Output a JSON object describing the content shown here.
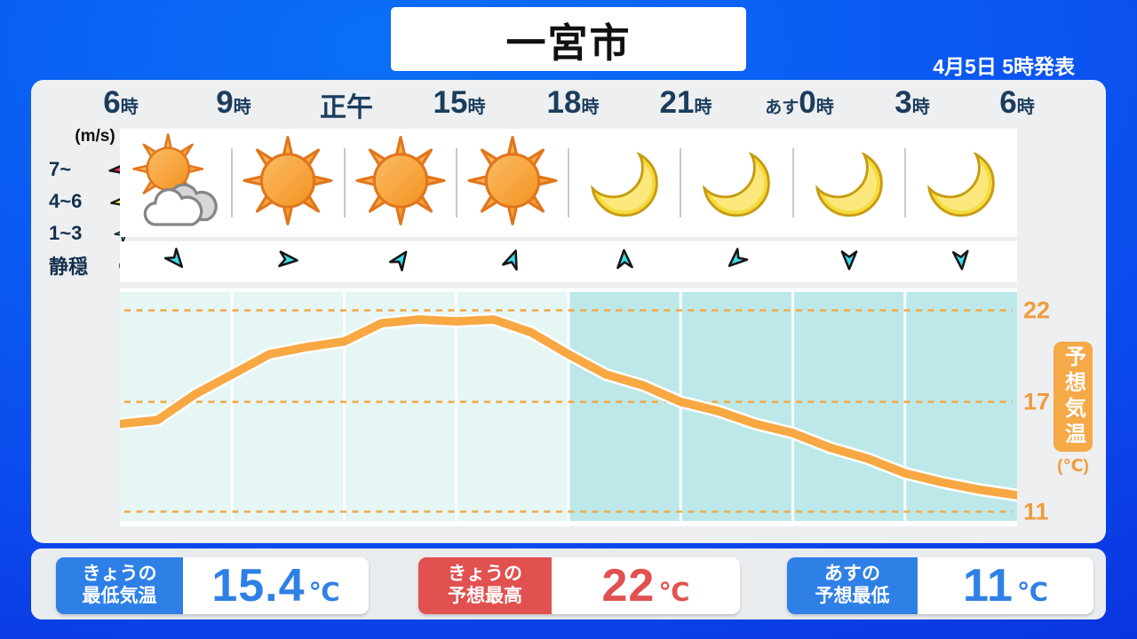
{
  "header": {
    "title": "一宮市",
    "announced": "4月5日 5時発表"
  },
  "time_axis": {
    "labels": [
      {
        "pre": "",
        "num": "6",
        "suf": "時"
      },
      {
        "pre": "",
        "num": "9",
        "suf": "時"
      },
      {
        "pre": "",
        "num": "正午",
        "suf": ""
      },
      {
        "pre": "",
        "num": "15",
        "suf": "時"
      },
      {
        "pre": "",
        "num": "18",
        "suf": "時"
      },
      {
        "pre": "",
        "num": "21",
        "suf": "時"
      },
      {
        "pre": "あす",
        "num": "0",
        "suf": "時"
      },
      {
        "pre": "",
        "num": "3",
        "suf": "時"
      },
      {
        "pre": "",
        "num": "6",
        "suf": "時"
      }
    ]
  },
  "wind_legend": {
    "unit": "(m/s)",
    "rows": [
      {
        "label": "7~",
        "glyph": "dart",
        "color": "#e8334a",
        "size": 38
      },
      {
        "label": "4~6",
        "glyph": "dart",
        "color": "#f4ec3b",
        "size": 35
      },
      {
        "label": "1~3",
        "glyph": "dart",
        "color": "#3edbeb",
        "size": 24
      },
      {
        "label": "静穏",
        "glyph": "circle",
        "color": "#ffffff",
        "size": 17
      }
    ]
  },
  "weather_icons": [
    "sun-cloud",
    "sun",
    "sun",
    "sun",
    "moon",
    "moon",
    "moon",
    "moon"
  ],
  "wind_directions_deg": [
    140,
    95,
    35,
    20,
    -3,
    228,
    180,
    175
  ],
  "chart_data": {
    "type": "line",
    "title": "予想気温",
    "unit": "(℃)",
    "x_range": [
      6,
      30
    ],
    "x_hours": [
      6,
      7,
      8,
      9,
      10,
      11,
      12,
      13,
      14,
      15,
      16,
      17,
      18,
      19,
      20,
      21,
      22,
      23,
      24,
      25,
      26,
      27,
      28,
      29,
      30
    ],
    "x_tick_labels": [
      "6時",
      "9時",
      "正午",
      "15時",
      "18時",
      "21時",
      "あす0時",
      "3時",
      "6時"
    ],
    "series": [
      {
        "name": "予想気温",
        "color": "#f7a843",
        "values": [
          15.8,
          16.0,
          17.4,
          18.5,
          19.6,
          20.0,
          20.3,
          21.3,
          21.5,
          21.4,
          21.5,
          20.8,
          19.6,
          18.5,
          17.9,
          17.0,
          16.5,
          15.8,
          15.3,
          14.5,
          13.9,
          13.1,
          12.6,
          12.2,
          11.9
        ]
      }
    ],
    "yticks": [
      22,
      17,
      11
    ],
    "ylim": [
      10.2,
      23.2
    ],
    "night_from_hour": 18,
    "day_bg": "#e6f6f5",
    "night_bg": "#bce8e9",
    "grid_color": "#f0aa4a",
    "grid_style": "dashed",
    "legend_position": "none"
  },
  "axis_badge": {
    "text": "予想気温",
    "unit": "(℃)",
    "bg": "#f5a947"
  },
  "stats": [
    {
      "label_line1": "きょうの",
      "label_line2": "最低気温",
      "value": "15.4",
      "unit": "℃",
      "accent": "#2f80e6"
    },
    {
      "label_line1": "きょうの",
      "label_line2": "予想最高",
      "value": "22",
      "unit": "℃",
      "accent": "#e0514f"
    },
    {
      "label_line1": "あすの",
      "label_line2": "予想最低",
      "value": "11",
      "unit": "℃",
      "accent": "#2f80e6"
    }
  ]
}
